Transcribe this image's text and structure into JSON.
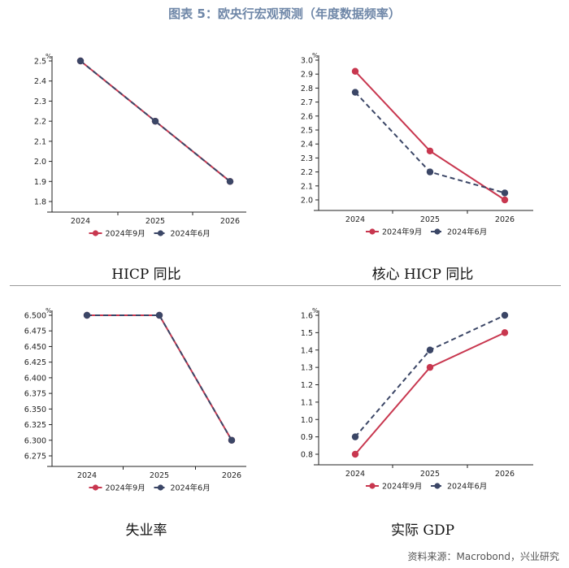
{
  "title": "图表 5：欧央行宏观预测（年度数据频率）",
  "source": "资料来源：Macrobond，兴业研究",
  "colors": {
    "sep": "#c8374f",
    "jun": "#3b4666"
  },
  "chart_data": [
    {
      "type": "line",
      "caption": "HICP 同比",
      "unit": "%",
      "categories": [
        "2024",
        "2025",
        "2026"
      ],
      "ylim": [
        1.8,
        2.5
      ],
      "yticks": [
        "1.8",
        "1.9",
        "2.0",
        "2.1",
        "2.2",
        "2.3",
        "2.4",
        "2.5"
      ],
      "legend_position": "bottom",
      "series": [
        {
          "name": "2024年9月",
          "values": [
            2.5,
            2.2,
            1.9
          ],
          "style": "solid"
        },
        {
          "name": "2024年6月",
          "values": [
            2.5,
            2.2,
            1.9
          ],
          "style": "dashed"
        }
      ]
    },
    {
      "type": "line",
      "caption": "核心 HICP 同比",
      "unit": "%",
      "categories": [
        "2024",
        "2025",
        "2026"
      ],
      "ylim": [
        2.0,
        3.0
      ],
      "yticks": [
        "2.0",
        "2.1",
        "2.2",
        "2.3",
        "2.4",
        "2.5",
        "2.6",
        "2.7",
        "2.8",
        "2.9",
        "3.0"
      ],
      "legend_position": "bottom",
      "series": [
        {
          "name": "2024年9月",
          "values": [
            2.92,
            2.35,
            2.0
          ],
          "style": "solid"
        },
        {
          "name": "2024年6月",
          "values": [
            2.77,
            2.2,
            2.05
          ],
          "style": "dashed"
        }
      ]
    },
    {
      "type": "line",
      "caption": "失业率",
      "unit": "%",
      "categories": [
        "2024",
        "2025",
        "2026"
      ],
      "ylim": [
        6.275,
        6.5
      ],
      "yticks": [
        "6.275",
        "6.300",
        "6.325",
        "6.350",
        "6.375",
        "6.400",
        "6.425",
        "6.450",
        "6.475",
        "6.500"
      ],
      "legend_position": "bottom",
      "series": [
        {
          "name": "2024年9月",
          "values": [
            6.5,
            6.5,
            6.3
          ],
          "style": "solid"
        },
        {
          "name": "2024年6月",
          "values": [
            6.5,
            6.5,
            6.3
          ],
          "style": "dashed"
        }
      ]
    },
    {
      "type": "line",
      "caption": "实际 GDP",
      "unit": "%",
      "categories": [
        "2024",
        "2025",
        "2026"
      ],
      "ylim": [
        0.8,
        1.6
      ],
      "yticks": [
        "0.8",
        "0.9",
        "1.0",
        "1.1",
        "1.2",
        "1.3",
        "1.4",
        "1.5",
        "1.6"
      ],
      "legend_position": "bottom",
      "series": [
        {
          "name": "2024年9月",
          "values": [
            0.8,
            1.3,
            1.5
          ],
          "style": "solid"
        },
        {
          "name": "2024年6月",
          "values": [
            0.9,
            1.4,
            1.6
          ],
          "style": "dashed"
        }
      ]
    }
  ]
}
